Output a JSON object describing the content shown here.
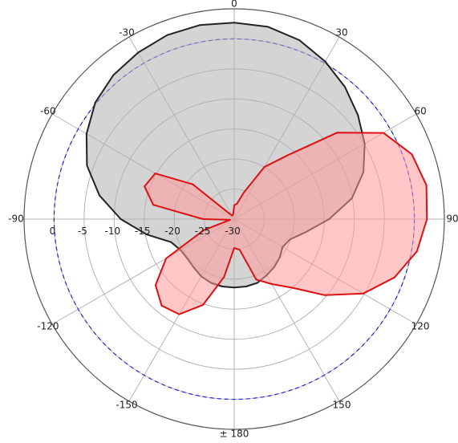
{
  "chart_data": {
    "type": "polar",
    "angle_unit": "degrees",
    "angle_zero": "top",
    "angle_direction": "clockwise",
    "angle_ticks": [
      {
        "angle": 0,
        "label": "0"
      },
      {
        "angle": 30,
        "label": "30"
      },
      {
        "angle": 60,
        "label": "60"
      },
      {
        "angle": 90,
        "label": "90"
      },
      {
        "angle": 120,
        "label": "120"
      },
      {
        "angle": 150,
        "label": "150"
      },
      {
        "angle": 180,
        "label": "± 180"
      },
      {
        "angle": -150,
        "label": "-150"
      },
      {
        "angle": -120,
        "label": "-120"
      },
      {
        "angle": -90,
        "label": "-90"
      },
      {
        "angle": -60,
        "label": "-60"
      },
      {
        "angle": -30,
        "label": "-30"
      }
    ],
    "radial_range": [
      -30,
      0
    ],
    "radial_outer_limit": 5,
    "radial_ticks": [
      {
        "value": 0,
        "label": "0"
      },
      {
        "value": -5,
        "label": "-5"
      },
      {
        "value": -10,
        "label": "-10"
      },
      {
        "value": -15,
        "label": "-15"
      },
      {
        "value": -20,
        "label": "-20"
      },
      {
        "value": -25,
        "label": "-25"
      },
      {
        "value": -30,
        "label": "-30"
      }
    ],
    "grid": true,
    "reference_circle": {
      "value": 0,
      "style": "dashed",
      "color": "#2222dd"
    },
    "series": [
      {
        "color": "#222222",
        "fill": "#b0b0b0",
        "angles": [
          0,
          10,
          20,
          30,
          40,
          50,
          60,
          70,
          80,
          90,
          100,
          110,
          120,
          130,
          140,
          150,
          160,
          170,
          180,
          -170,
          -160,
          -150,
          -140,
          -130,
          -120,
          -110,
          -100,
          -90,
          -80,
          -70,
          -60,
          -50,
          -40,
          -30,
          -20,
          -10
        ],
        "values": [
          2.7,
          2.5,
          1.7,
          0.3,
          -1.3,
          -3.1,
          -4.9,
          -7.1,
          -10.1,
          -14.2,
          -17.8,
          -20.1,
          -20.7,
          -20.1,
          -19.6,
          -19.2,
          -18.7,
          -18.6,
          -18.6,
          -18.6,
          -18.7,
          -19.0,
          -19.5,
          -19.8,
          -19.7,
          -18.8,
          -15.2,
          -11.1,
          -7.2,
          -3.9,
          -1.6,
          0.2,
          1.3,
          2.0,
          2.6,
          2.8
        ]
      },
      {
        "color": "#dd1111",
        "fill": "#ff9999",
        "angles": [
          0,
          10,
          20,
          30,
          40,
          50,
          60,
          70,
          80,
          90,
          100,
          110,
          120,
          130,
          140,
          150,
          160,
          170,
          180,
          -170,
          -160,
          -150,
          -140,
          -130,
          -120,
          -110,
          -100,
          -90,
          -80,
          -70,
          -60,
          -50,
          -40,
          -30,
          -20,
          -10
        ],
        "values": [
          -27.7,
          -27.4,
          -25.3,
          -20.0,
          -16.1,
          -7.6,
          -1.3,
          1.5,
          2.5,
          2.1,
          0.9,
          -1.6,
          -5.2,
          -10.3,
          -15.1,
          -17.5,
          -19.3,
          -24.8,
          -25.2,
          -20.2,
          -14.8,
          -11.7,
          -11.2,
          -12.9,
          -16.9,
          -24.6,
          -29.3,
          -24.8,
          -16.3,
          -14.1,
          -14.8,
          -21.0,
          -28.9,
          -29.3,
          -29.3,
          -29.1
        ]
      }
    ]
  }
}
